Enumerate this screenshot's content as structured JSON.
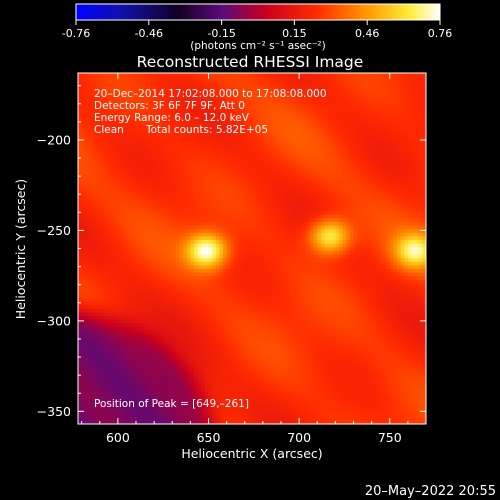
{
  "colorbar": {
    "ticks": [
      "-0.76",
      "-0.46",
      "-0.15",
      "0.15",
      "0.46",
      "0.76"
    ],
    "unit_label": "(photons cm⁻² s⁻¹ asec⁻²)",
    "range": [
      -0.76,
      0.76
    ]
  },
  "chart_data": {
    "type": "heatmap",
    "title": "Reconstructed RHESSI Image",
    "xlabel": "Heliocentric X (arcsec)",
    "ylabel": "Heliocentric Y (arcsec)",
    "xlim": [
      578,
      770
    ],
    "ylim": [
      -357,
      -163
    ],
    "xticks": [
      600,
      650,
      700,
      750
    ],
    "yticks": [
      -200,
      -250,
      -300,
      -350
    ],
    "colormap": "RHESSI red-temperature (blue → black → purple → red → orange → yellow → white)",
    "sources": [
      {
        "x": 649,
        "y": -261,
        "peak": 0.76
      },
      {
        "x": 717,
        "y": -253,
        "peak": 0.7
      },
      {
        "x": 764,
        "y": -261,
        "peak": 0.65
      }
    ],
    "background_level": 0.25,
    "negative_region": {
      "corner": "bottom-left",
      "level": -0.1
    }
  },
  "annotations": {
    "time_range": "20–Dec–2014 17:02:08.000 to 17:08:08.000",
    "detectors": "Detectors: 3F 6F 7F 9F, Att 0",
    "energy": "Energy Range: 6.0 – 12.0 keV",
    "method": "Clean",
    "counts": "Total counts: 5.82E+05",
    "peak": "Position of Peak = [649,–261]"
  },
  "timestamp": "20–May–2022 20:55"
}
